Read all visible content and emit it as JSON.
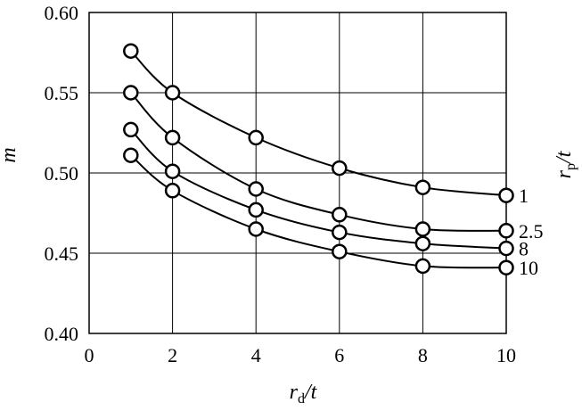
{
  "chart_data": {
    "type": "line",
    "xlabel": {
      "main": "r",
      "sub": "d",
      "tail": "/t"
    },
    "ylabel": "m",
    "legend_title": {
      "main": "r",
      "sub": "p",
      "tail": "/t"
    },
    "xlim": [
      0,
      10
    ],
    "ylim": [
      0.4,
      0.6
    ],
    "xticks": [
      "0",
      "2",
      "4",
      "6",
      "8",
      "10"
    ],
    "yticks": [
      "0.40",
      "0.45",
      "0.50",
      "0.55",
      "0.60"
    ],
    "grid": true,
    "x": [
      1,
      2,
      4,
      6,
      8,
      10
    ],
    "series": [
      {
        "name": "1",
        "values": [
          0.576,
          0.55,
          0.522,
          0.503,
          0.491,
          0.486
        ]
      },
      {
        "name": "2.5",
        "values": [
          0.55,
          0.522,
          0.49,
          0.474,
          0.465,
          0.464
        ]
      },
      {
        "name": "8",
        "values": [
          0.527,
          0.501,
          0.477,
          0.463,
          0.456,
          0.453
        ]
      },
      {
        "name": "10",
        "values": [
          0.511,
          0.489,
          0.465,
          0.451,
          0.442,
          0.441
        ]
      }
    ]
  }
}
